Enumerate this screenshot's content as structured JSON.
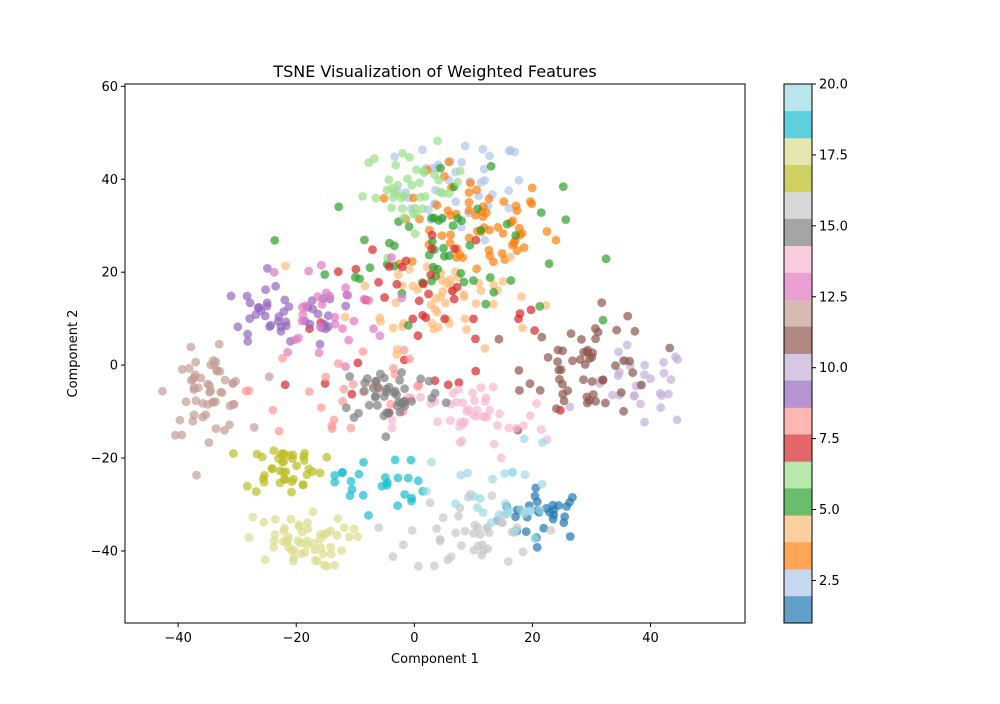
{
  "chart_data": {
    "type": "scatter",
    "title": "TSNE Visualization of Weighted Features",
    "xlabel": "Component 1",
    "ylabel": "Component 2",
    "xlim": [
      -49,
      56
    ],
    "ylim": [
      -55.5,
      60.5
    ],
    "xticks": [
      -40,
      -20,
      0,
      20,
      40
    ],
    "yticks": [
      -40,
      -20,
      0,
      20,
      40,
      60
    ],
    "grid": false,
    "legend": "none",
    "marker_alpha": 0.7,
    "colorbar": {
      "min": 1,
      "max": 20,
      "ticks": [
        2.5,
        5.0,
        7.5,
        10.0,
        12.5,
        15.0,
        17.5,
        20.0
      ],
      "tick_labels": [
        "2.5",
        "5.0",
        "7.5",
        "10.0",
        "12.5",
        "15.0",
        "17.5",
        "20.0"
      ],
      "colormap": "tab20",
      "colors": [
        "#1f77b4",
        "#aec7e8",
        "#ff7f0e",
        "#ffbb78",
        "#2ca02c",
        "#98df8a",
        "#d62728",
        "#ff9896",
        "#9467bd",
        "#c5b0d5",
        "#8c564b",
        "#c49c94",
        "#e377c2",
        "#f7b6d2",
        "#7f7f7f",
        "#c7c7c7",
        "#bcbd22",
        "#dbdb8d",
        "#17becf",
        "#9edae5"
      ]
    },
    "clusters": [
      {
        "label": 1,
        "center": [
          22,
          -32
        ],
        "spread": [
          7,
          5
        ],
        "count": 30
      },
      {
        "label": 2,
        "center": [
          8,
          38
        ],
        "spread": [
          10,
          10
        ],
        "count": 40
      },
      {
        "label": 3,
        "center": [
          10,
          30
        ],
        "spread": [
          12,
          10
        ],
        "count": 65
      },
      {
        "label": 4,
        "center": [
          5,
          15
        ],
        "spread": [
          14,
          10
        ],
        "count": 55
      },
      {
        "label": 5,
        "center": [
          5,
          25
        ],
        "spread": [
          18,
          14
        ],
        "count": 55
      },
      {
        "label": 6,
        "center": [
          0,
          38
        ],
        "spread": [
          8,
          8
        ],
        "count": 40
      },
      {
        "label": 7,
        "center": [
          0,
          10
        ],
        "spread": [
          20,
          14
        ],
        "count": 45
      },
      {
        "label": 8,
        "center": [
          -10,
          -5
        ],
        "spread": [
          16,
          14
        ],
        "count": 30
      },
      {
        "label": 9,
        "center": [
          -22,
          10
        ],
        "spread": [
          12,
          6
        ],
        "count": 45
      },
      {
        "label": 10,
        "center": [
          38,
          -5
        ],
        "spread": [
          8,
          8
        ],
        "count": 30
      },
      {
        "label": 11,
        "center": [
          30,
          0
        ],
        "spread": [
          10,
          10
        ],
        "count": 55
      },
      {
        "label": 12,
        "center": [
          -35,
          -6
        ],
        "spread": [
          6,
          8
        ],
        "count": 55
      },
      {
        "label": 13,
        "center": [
          -15,
          12
        ],
        "spread": [
          10,
          10
        ],
        "count": 30
      },
      {
        "label": 14,
        "center": [
          10,
          -12
        ],
        "spread": [
          12,
          8
        ],
        "count": 45
      },
      {
        "label": 15,
        "center": [
          -4,
          -6
        ],
        "spread": [
          8,
          6
        ],
        "count": 45
      },
      {
        "label": 16,
        "center": [
          10,
          -36
        ],
        "spread": [
          10,
          8
        ],
        "count": 45
      },
      {
        "label": 17,
        "center": [
          -22,
          -22
        ],
        "spread": [
          6,
          5
        ],
        "count": 40
      },
      {
        "label": 18,
        "center": [
          -20,
          -38
        ],
        "spread": [
          8,
          5
        ],
        "count": 55
      },
      {
        "label": 19,
        "center": [
          -6,
          -25
        ],
        "spread": [
          7,
          6
        ],
        "count": 25
      },
      {
        "label": 20,
        "center": [
          14,
          -30
        ],
        "spread": [
          10,
          12
        ],
        "count": 30
      }
    ]
  }
}
